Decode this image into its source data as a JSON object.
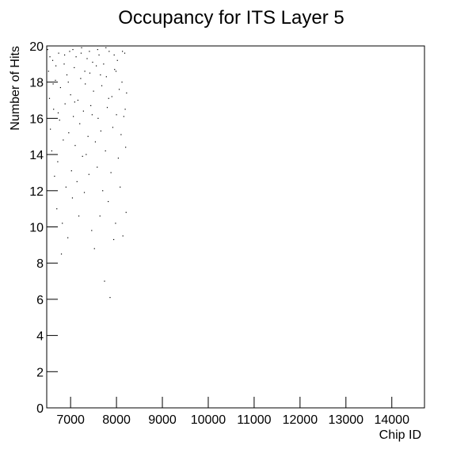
{
  "chart_data": {
    "type": "scatter",
    "title": "Occupancy for ITS Layer 5",
    "x_label": "Chip ID",
    "y_label": "Number of Hits",
    "color": "#000000",
    "xlim": [
      6480,
      14712
    ],
    "xticks": [
      7000,
      8000,
      9000,
      10000,
      11000,
      12000,
      13000,
      14000
    ],
    "ylim": [
      0,
      20
    ],
    "yticks": [
      0,
      2,
      4,
      6,
      8,
      10,
      12,
      14,
      16,
      18,
      20
    ],
    "x": [
      6500,
      6520,
      6540,
      6560,
      6590,
      6610,
      6630,
      6650,
      6670,
      6700,
      6720,
      6740,
      6760,
      6780,
      6800,
      6820,
      6840,
      6860,
      6880,
      6900,
      6920,
      6940,
      6960,
      6980,
      7000,
      7020,
      7040,
      7060,
      7080,
      7100,
      7120,
      7140,
      7160,
      7180,
      7200,
      7220,
      7240,
      7260,
      7280,
      7300,
      7320,
      7340,
      7360,
      7380,
      7400,
      7420,
      7440,
      7460,
      7480,
      7500,
      7520,
      7540,
      7560,
      7580,
      7600,
      7620,
      7640,
      7660,
      7680,
      7700,
      7720,
      7740,
      7760,
      7780,
      7800,
      7820,
      7840,
      7860,
      7880,
      7900,
      7920,
      7940,
      7960,
      7980,
      8000,
      8020,
      8040,
      8060,
      8080,
      8100,
      8120,
      8140,
      8160,
      8180,
      8200,
      8210,
      8220,
      6550,
      6680,
      6870,
      7050,
      7230,
      7410,
      7590,
      7770,
      7950,
      8130,
      6620,
      6950,
      7310,
      7650,
      7990,
      6730,
      7090,
      7470,
      7830,
      8190
    ],
    "values": [
      19.8,
      18.6,
      17.1,
      15.4,
      14.2,
      19.2,
      16.5,
      12.8,
      18.1,
      11.0,
      13.6,
      19.6,
      15.9,
      17.7,
      8.5,
      10.2,
      14.8,
      19.0,
      16.8,
      12.2,
      18.4,
      9.4,
      15.2,
      19.7,
      17.3,
      13.1,
      11.6,
      16.1,
      18.8,
      14.5,
      19.4,
      12.5,
      17.0,
      10.6,
      15.7,
      18.2,
      19.9,
      13.9,
      16.4,
      11.9,
      17.9,
      14.0,
      19.3,
      15.0,
      12.9,
      18.5,
      16.7,
      9.8,
      19.1,
      17.5,
      8.8,
      14.7,
      18.9,
      13.3,
      16.0,
      19.5,
      10.6,
      15.3,
      17.8,
      12.0,
      19.0,
      7.0,
      14.2,
      18.3,
      16.6,
      11.4,
      19.7,
      6.1,
      13.0,
      17.2,
      15.5,
      9.3,
      18.7,
      10.2,
      16.2,
      19.2,
      13.8,
      17.6,
      12.2,
      15.1,
      18.0,
      9.5,
      16.1,
      19.6,
      14.4,
      10.8,
      17.4,
      19.4,
      18.9,
      19.5,
      19.8,
      19.6,
      19.7,
      19.8,
      19.9,
      19.5,
      19.7,
      17.9,
      18.0,
      18.6,
      18.4,
      18.6,
      16.3,
      16.9,
      16.2,
      17.1,
      16.5
    ]
  }
}
